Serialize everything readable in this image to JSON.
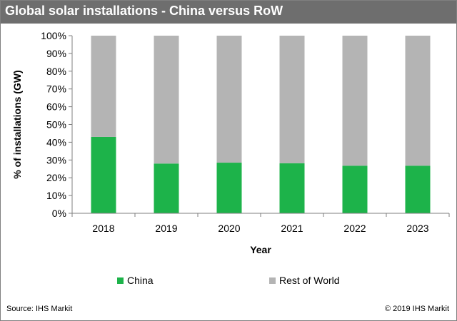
{
  "header": {
    "title": "Global solar installations - China versus RoW"
  },
  "footer": {
    "source": "Source: IHS Markit",
    "copyright": "© 2019 IHS Markit"
  },
  "colors": {
    "china": "#1db34a",
    "rest_of_world": "#b4b4b4",
    "header_bg": "#6e6e6e"
  },
  "chart_data": {
    "type": "bar",
    "stacked": true,
    "categories": [
      "2018",
      "2019",
      "2020",
      "2021",
      "2022",
      "2023"
    ],
    "series": [
      {
        "name": "China",
        "values": [
          43,
          28,
          28.5,
          28.2,
          26.8,
          26.8
        ]
      },
      {
        "name": "Rest of World",
        "values": [
          57,
          72,
          71.5,
          71.8,
          73.2,
          73.2
        ]
      }
    ],
    "xlabel": "Year",
    "ylabel": "% of installations (GW)",
    "ylim": [
      0,
      100
    ],
    "yticks": [
      "0%",
      "10%",
      "20%",
      "30%",
      "40%",
      "50%",
      "60%",
      "70%",
      "80%",
      "90%",
      "100%"
    ],
    "grid": false,
    "legend": "bottom"
  }
}
